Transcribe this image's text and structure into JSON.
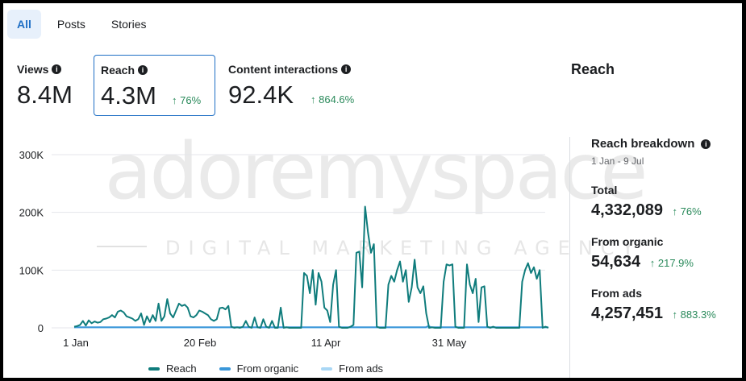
{
  "tabs": [
    {
      "label": "All",
      "active": true
    },
    {
      "label": "Posts",
      "active": false
    },
    {
      "label": "Stories",
      "active": false
    }
  ],
  "metrics": [
    {
      "label": "Views",
      "value": "8.4M",
      "change": ""
    },
    {
      "label": "Reach",
      "value": "4.3M",
      "change": "76%"
    },
    {
      "label": "Content interactions",
      "value": "92.4K",
      "change": "864.6%"
    }
  ],
  "right_title": "Reach",
  "breakdown": {
    "title": "Reach breakdown",
    "date_range": "1 Jan - 9 Jul",
    "items": [
      {
        "label": "Total",
        "value": "4,332,089",
        "change": "76%"
      },
      {
        "label": "From organic",
        "value": "54,634",
        "change": "217.9%"
      },
      {
        "label": "From ads",
        "value": "4,257,451",
        "change": "883.3%"
      }
    ]
  },
  "watermark": {
    "brand": "adoremyspace",
    "tagline": "DIGITAL MARKETING AGENCY"
  },
  "colors": {
    "reach": "#0f7c7c",
    "organic": "#3a97d9",
    "ads": "#a9d7f5",
    "positive": "#2a8a5b",
    "accent": "#1f6fc5"
  },
  "chart_data": {
    "type": "line",
    "x_ticks": [
      "1 Jan",
      "20 Feb",
      "11 Apr",
      "31 May"
    ],
    "y_ticks": [
      "0",
      "100K",
      "200K",
      "300K"
    ],
    "ylim": [
      0,
      300000
    ],
    "series": [
      {
        "name": "Reach",
        "values": [
          2000,
          3000,
          5000,
          12000,
          4000,
          13000,
          8000,
          11000,
          9000,
          10000,
          15000,
          16000,
          18000,
          22000,
          18000,
          28000,
          30000,
          27000,
          20000,
          18000,
          16000,
          12000,
          15000,
          25000,
          5000,
          20000,
          10000,
          22000,
          12000,
          42000,
          12000,
          20000,
          50000,
          25000,
          18000,
          30000,
          42000,
          38000,
          40000,
          35000,
          20000,
          18000,
          22000,
          30000,
          28000,
          25000,
          22000,
          15000,
          12000,
          15000,
          34000,
          35000,
          32000,
          38000,
          2000,
          0,
          1000,
          0,
          2000,
          12000,
          2000,
          0,
          18000,
          1000,
          0,
          15000,
          2000,
          0,
          12000,
          0,
          0,
          35000,
          0,
          1000,
          0,
          0,
          0,
          0,
          0,
          95000,
          90000,
          60000,
          100000,
          40000,
          95000,
          80000,
          35000,
          30000,
          10000,
          75000,
          100000,
          2000,
          0,
          0,
          0,
          2000,
          5000,
          130000,
          132000,
          70000,
          210000,
          165000,
          130000,
          145000,
          2000,
          0,
          0,
          0,
          75000,
          90000,
          80000,
          100000,
          115000,
          80000,
          100000,
          45000,
          70000,
          118000,
          70000,
          60000,
          72000,
          25000,
          0,
          1000,
          0,
          0,
          0,
          80000,
          110000,
          108000,
          110000,
          2000,
          0,
          0,
          0,
          110000,
          75000,
          60000,
          85000,
          10000,
          70000,
          72000,
          2000,
          0,
          2000,
          0,
          0,
          0,
          0,
          0,
          0,
          0,
          0,
          0,
          80000,
          100000,
          112000,
          95000,
          105000,
          85000,
          100000,
          0,
          2000,
          0
        ]
      },
      {
        "name": "From organic",
        "values": [
          1000,
          1000,
          1000,
          1000,
          1000,
          1000,
          1000,
          1000,
          1000,
          1000,
          1000,
          1000,
          1000,
          1000,
          1000,
          1000,
          1000,
          1000,
          1000,
          1000,
          1000,
          1000,
          1000,
          1000,
          1000,
          1000,
          1000,
          1000,
          1000,
          1000,
          1000,
          1000,
          1000,
          1000,
          1000,
          1000,
          1000,
          1000,
          1000,
          1000,
          1000,
          1000,
          1000,
          1000,
          1000,
          1000,
          1000,
          1000,
          1000,
          1000,
          1000,
          1000,
          1000,
          1000,
          1000,
          1000,
          1000,
          1000,
          1000,
          1000,
          1000,
          1000,
          1000,
          1000,
          1000,
          1000,
          1000,
          1000,
          1000,
          1000,
          1000,
          1000,
          1000,
          1000,
          1000,
          1000,
          1000,
          1000,
          1000,
          1000,
          1000,
          1000,
          1000,
          1000,
          1000,
          1000,
          1000,
          1000,
          1000,
          1000,
          1000,
          1000,
          1000,
          1000,
          1000,
          1000,
          1000,
          1000,
          1000,
          1000,
          1000,
          1000,
          1000,
          1000,
          1000,
          1000,
          1000,
          1000,
          1000,
          1000,
          1000,
          1000,
          1000,
          1000,
          1000,
          1000,
          1000,
          1000,
          1000,
          1000,
          1000,
          1000,
          1000,
          1000,
          3000,
          1000,
          1000,
          1000,
          1000,
          1000,
          1000,
          1000,
          1000,
          1000,
          1000,
          1000,
          1000,
          1000,
          1000,
          1000,
          1000,
          1000,
          1000,
          1000,
          1000,
          1000,
          1000,
          1000,
          1000,
          1000,
          1000,
          1000,
          1000,
          1000,
          1000,
          1000,
          1000,
          1000,
          1000,
          1000,
          1000,
          1000,
          1000,
          1000,
          1000,
          1000,
          1000
        ]
      },
      {
        "name": "From ads",
        "values": [
          500,
          500,
          500,
          500,
          500,
          500,
          500,
          500,
          500,
          500,
          500,
          500,
          500,
          500,
          500,
          500,
          500,
          500,
          500,
          500,
          500,
          500,
          500,
          500,
          500,
          500,
          500,
          500,
          500,
          500,
          500,
          500,
          500,
          500,
          500,
          500,
          500,
          500,
          500,
          500,
          500,
          500,
          500,
          500,
          500,
          500,
          500,
          500,
          500,
          500,
          500,
          500,
          500,
          500,
          500,
          500,
          500,
          500,
          500,
          500,
          500,
          500,
          500,
          500,
          500,
          500,
          500,
          500,
          500,
          500,
          500,
          500,
          500,
          500,
          500,
          500,
          500,
          500,
          500,
          500,
          500,
          500,
          500,
          500,
          500,
          500,
          500,
          500,
          500,
          500,
          500,
          500,
          500,
          500,
          500,
          500,
          500,
          500,
          500,
          500,
          500,
          500,
          500,
          500,
          500,
          500,
          500,
          500,
          500,
          500,
          500,
          500,
          500,
          500,
          500,
          500,
          500,
          500,
          500,
          500,
          500,
          500,
          500,
          500,
          500,
          500,
          500,
          500,
          500,
          500,
          500,
          500,
          500,
          500,
          500,
          500,
          500,
          500,
          500,
          500,
          500,
          500,
          500,
          500,
          500,
          500,
          500,
          500,
          500,
          500,
          500,
          500,
          500,
          500,
          500,
          500,
          500,
          500,
          500,
          500,
          500,
          500,
          500,
          500,
          500,
          500
        ]
      }
    ]
  }
}
